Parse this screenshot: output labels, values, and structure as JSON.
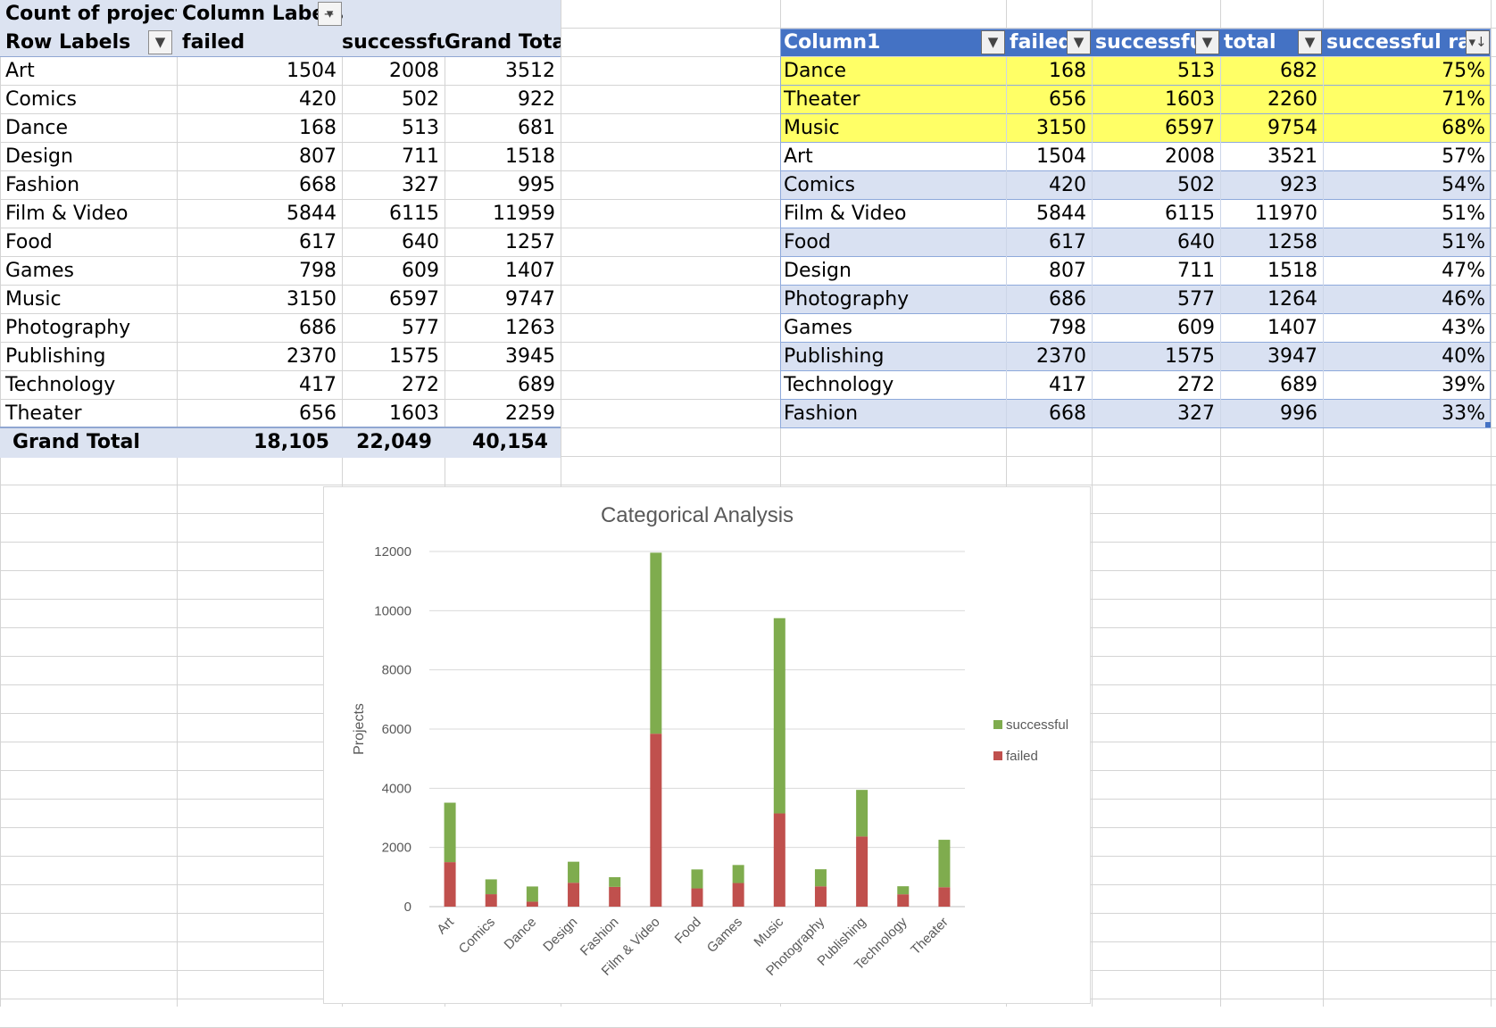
{
  "pivot": {
    "corner_label": "Count of project id",
    "column_labels_label": "Column Labels",
    "row_labels_label": "Row Labels",
    "headers": [
      "failed",
      "successful",
      "Grand Total"
    ],
    "rows": [
      {
        "label": "Art",
        "failed": "1504",
        "successful": "2008",
        "total": "3512"
      },
      {
        "label": "Comics",
        "failed": "420",
        "successful": "502",
        "total": "922"
      },
      {
        "label": "Dance",
        "failed": "168",
        "successful": "513",
        "total": "681"
      },
      {
        "label": "Design",
        "failed": "807",
        "successful": "711",
        "total": "1518"
      },
      {
        "label": "Fashion",
        "failed": "668",
        "successful": "327",
        "total": "995"
      },
      {
        "label": "Film & Video",
        "failed": "5844",
        "successful": "6115",
        "total": "11959"
      },
      {
        "label": "Food",
        "failed": "617",
        "successful": "640",
        "total": "1257"
      },
      {
        "label": "Games",
        "failed": "798",
        "successful": "609",
        "total": "1407"
      },
      {
        "label": "Music",
        "failed": "3150",
        "successful": "6597",
        "total": "9747"
      },
      {
        "label": "Photography",
        "failed": "686",
        "successful": "577",
        "total": "1263"
      },
      {
        "label": "Publishing",
        "failed": "2370",
        "successful": "1575",
        "total": "3945"
      },
      {
        "label": "Technology",
        "failed": "417",
        "successful": "272",
        "total": "689"
      },
      {
        "label": "Theater",
        "failed": "656",
        "successful": "1603",
        "total": "2259"
      }
    ],
    "grand_total": {
      "label": "Grand Total",
      "failed": "18,105",
      "successful": "22,049",
      "total": "40,154"
    }
  },
  "table": {
    "headers": [
      "Column1",
      "failed",
      "successful",
      "total",
      "successful rate"
    ],
    "highlight_color": "#ffff66",
    "header_color": "#4472c4",
    "band_color": "#d9e1f2",
    "rows": [
      {
        "label": "Dance",
        "failed": "168",
        "successful": "513",
        "total": "682",
        "rate": "75%",
        "highlight": true
      },
      {
        "label": "Theater",
        "failed": "656",
        "successful": "1603",
        "total": "2260",
        "rate": "71%",
        "highlight": true
      },
      {
        "label": "Music",
        "failed": "3150",
        "successful": "6597",
        "total": "9754",
        "rate": "68%",
        "highlight": true
      },
      {
        "label": "Art",
        "failed": "1504",
        "successful": "2008",
        "total": "3521",
        "rate": "57%",
        "highlight": false
      },
      {
        "label": "Comics",
        "failed": "420",
        "successful": "502",
        "total": "923",
        "rate": "54%",
        "highlight": false
      },
      {
        "label": "Film & Video",
        "failed": "5844",
        "successful": "6115",
        "total": "11970",
        "rate": "51%",
        "highlight": false
      },
      {
        "label": "Food",
        "failed": "617",
        "successful": "640",
        "total": "1258",
        "rate": "51%",
        "highlight": false
      },
      {
        "label": "Design",
        "failed": "807",
        "successful": "711",
        "total": "1518",
        "rate": "47%",
        "highlight": false
      },
      {
        "label": "Photography",
        "failed": "686",
        "successful": "577",
        "total": "1264",
        "rate": "46%",
        "highlight": false
      },
      {
        "label": "Games",
        "failed": "798",
        "successful": "609",
        "total": "1407",
        "rate": "43%",
        "highlight": false
      },
      {
        "label": "Publishing",
        "failed": "2370",
        "successful": "1575",
        "total": "3947",
        "rate": "40%",
        "highlight": false
      },
      {
        "label": "Technology",
        "failed": "417",
        "successful": "272",
        "total": "689",
        "rate": "39%",
        "highlight": false
      },
      {
        "label": "Fashion",
        "failed": "668",
        "successful": "327",
        "total": "996",
        "rate": "33%",
        "highlight": false
      }
    ]
  },
  "icons": {
    "filter_active": "filter-icon",
    "dropdown": "chevron-down-icon",
    "sort_desc": "sort-descending-icon"
  },
  "chart_data": {
    "type": "bar",
    "stacked": true,
    "title": "Categorical Analysis",
    "xlabel": "",
    "ylabel": "Projects",
    "ylim": [
      0,
      12000
    ],
    "yticks": [
      0,
      2000,
      4000,
      6000,
      8000,
      10000,
      12000
    ],
    "grid": true,
    "legend_position": "right",
    "categories": [
      "Art",
      "Comics",
      "Dance",
      "Design",
      "Fashion",
      "Film & Video",
      "Food",
      "Games",
      "Music",
      "Photography",
      "Publishing",
      "Technology",
      "Theater"
    ],
    "series": [
      {
        "name": "failed",
        "color": "#c0504d",
        "values": [
          1504,
          420,
          168,
          807,
          668,
          5844,
          617,
          798,
          3150,
          686,
          2370,
          417,
          656
        ]
      },
      {
        "name": "successful",
        "color": "#7fac4e",
        "values": [
          2008,
          502,
          513,
          711,
          327,
          6115,
          640,
          609,
          6597,
          577,
          1575,
          272,
          1603
        ]
      }
    ],
    "legend_order": [
      "successful",
      "failed"
    ]
  }
}
